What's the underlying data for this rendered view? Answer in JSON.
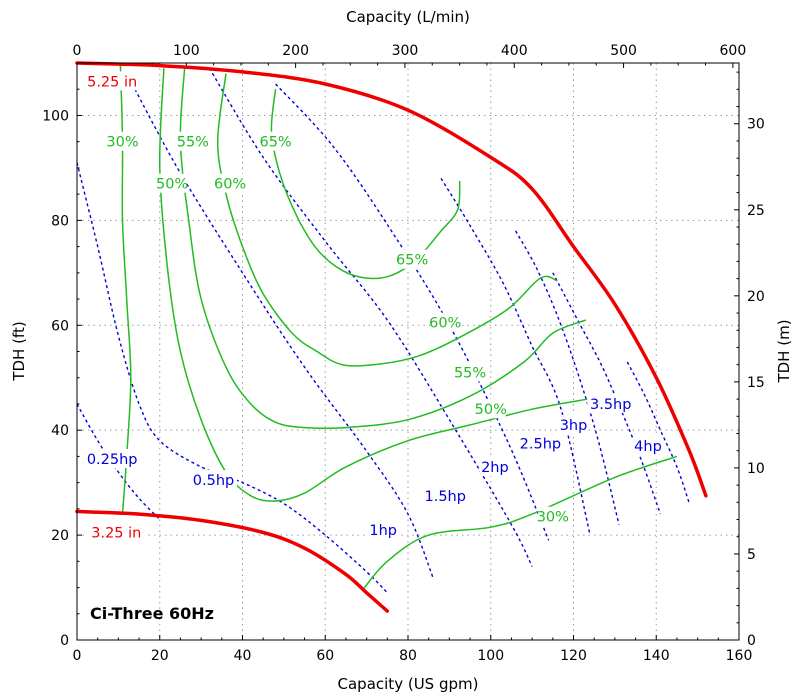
{
  "chart_data": {
    "type": "line",
    "chart_label": "Ci-Three 60Hz",
    "xlabel_bottom": "Capacity (US gpm)",
    "xlabel_top": "Capacity (L/min)",
    "ylabel_left": "TDH (ft)",
    "ylabel_right": "TDH (m)",
    "xlim": [
      0,
      160
    ],
    "ylim": [
      0,
      110
    ],
    "xlim_top": [
      0,
      605.6
    ],
    "ylim_right": [
      0,
      33.53
    ],
    "x_ticks": [
      "0",
      "20",
      "40",
      "60",
      "80",
      "100",
      "120",
      "140",
      "160"
    ],
    "y_ticks": [
      "0",
      "20",
      "40",
      "60",
      "80",
      "100"
    ],
    "x_ticks_top": [
      "0",
      "100",
      "200",
      "300",
      "400",
      "500",
      "600"
    ],
    "y_ticks_right": [
      "0",
      "5",
      "10",
      "15",
      "20",
      "25",
      "30"
    ],
    "grid": true,
    "colors": {
      "impeller": "#ee0000",
      "efficiency": "#22bb22",
      "power": "#0000dd"
    },
    "impeller_curves": [
      {
        "label": "5.25 in",
        "points": [
          [
            0,
            110
          ],
          [
            20,
            109.5
          ],
          [
            40,
            108.3
          ],
          [
            60,
            106
          ],
          [
            80,
            101
          ],
          [
            100,
            92
          ],
          [
            110,
            86
          ],
          [
            120,
            75
          ],
          [
            130,
            64
          ],
          [
            140,
            50
          ],
          [
            148,
            36
          ],
          [
            152,
            27.5
          ]
        ]
      },
      {
        "label": "3.25 in",
        "points": [
          [
            0,
            24.5
          ],
          [
            15,
            24
          ],
          [
            30,
            22.8
          ],
          [
            45,
            20.5
          ],
          [
            55,
            17.5
          ],
          [
            65,
            12.5
          ],
          [
            70,
            9
          ],
          [
            75,
            5.5
          ]
        ]
      }
    ],
    "efficiency_curves": [
      {
        "label": "30%",
        "points": [
          [
            11,
            24
          ],
          [
            12,
            35
          ],
          [
            13,
            50
          ],
          [
            12,
            65
          ],
          [
            11,
            80
          ],
          [
            11,
            95
          ],
          [
            10.5,
            109.5
          ]
        ]
      },
      {
        "label": "30%",
        "points": [
          [
            69,
            9.5
          ],
          [
            75,
            15
          ],
          [
            85,
            20
          ],
          [
            100,
            21.5
          ],
          [
            110,
            24
          ],
          [
            130,
            31
          ],
          [
            145,
            35
          ]
        ]
      },
      {
        "label": "50%",
        "points": [
          [
            21,
            109
          ],
          [
            20,
            90
          ],
          [
            22,
            70
          ],
          [
            25,
            55
          ],
          [
            30,
            42
          ],
          [
            36,
            32
          ],
          [
            42,
            27.5
          ],
          [
            48,
            26.5
          ],
          [
            55,
            28
          ],
          [
            65,
            33
          ],
          [
            80,
            38
          ],
          [
            95,
            41
          ],
          [
            110,
            44
          ],
          [
            124,
            46
          ]
        ]
      },
      {
        "label": "55%",
        "points": [
          [
            26,
            109
          ],
          [
            25,
            95
          ],
          [
            27,
            80
          ],
          [
            30,
            65
          ],
          [
            36,
            52
          ],
          [
            42,
            45
          ],
          [
            48,
            41.5
          ],
          [
            55,
            40.5
          ],
          [
            65,
            40.5
          ],
          [
            80,
            42
          ],
          [
            95,
            46.5
          ],
          [
            108,
            53
          ],
          [
            115,
            58.5
          ],
          [
            123,
            61
          ]
        ]
      },
      {
        "label": "60%",
        "points": [
          [
            36,
            108
          ],
          [
            34,
            95
          ],
          [
            36,
            85
          ],
          [
            40,
            75
          ],
          [
            45,
            66
          ],
          [
            52,
            58.5
          ],
          [
            58,
            55
          ],
          [
            64,
            52.5
          ],
          [
            72,
            52.5
          ],
          [
            82,
            54
          ],
          [
            92,
            57.5
          ],
          [
            104,
            63
          ],
          [
            112,
            69
          ],
          [
            116,
            68.5
          ]
        ]
      },
      {
        "label": "65%",
        "points": [
          [
            48,
            105
          ],
          [
            47,
            97
          ],
          [
            49,
            89
          ],
          [
            53,
            81
          ],
          [
            58,
            74.5
          ],
          [
            64,
            70.5
          ],
          [
            70,
            69
          ],
          [
            76,
            69.5
          ],
          [
            82,
            72.5
          ],
          [
            88,
            78
          ],
          [
            92,
            82
          ],
          [
            92.5,
            87.5
          ]
        ]
      }
    ],
    "efficiency_labels": [
      {
        "text": "30%",
        "x": 11,
        "y": 95
      },
      {
        "text": "50%",
        "x": 23,
        "y": 87
      },
      {
        "text": "55%",
        "x": 28,
        "y": 95
      },
      {
        "text": "60%",
        "x": 37,
        "y": 87
      },
      {
        "text": "65%",
        "x": 48,
        "y": 95
      },
      {
        "text": "65%",
        "x": 81,
        "y": 72.5
      },
      {
        "text": "60%",
        "x": 89,
        "y": 60.5
      },
      {
        "text": "55%",
        "x": 95,
        "y": 51
      },
      {
        "text": "50%",
        "x": 100,
        "y": 44
      },
      {
        "text": "30%",
        "x": 115,
        "y": 23.5
      }
    ],
    "power_curves": [
      {
        "label": "0.25hp",
        "points": [
          [
            0,
            45
          ],
          [
            5,
            38
          ],
          [
            10,
            32
          ],
          [
            15,
            27
          ],
          [
            20,
            23
          ]
        ]
      },
      {
        "label": "0.5hp",
        "points": [
          [
            0,
            91
          ],
          [
            5,
            75
          ],
          [
            10,
            58
          ],
          [
            15,
            45
          ],
          [
            20,
            38
          ],
          [
            30,
            33
          ],
          [
            40,
            30
          ],
          [
            50,
            26
          ],
          [
            60,
            20
          ],
          [
            70,
            13
          ],
          [
            75,
            9
          ]
        ]
      },
      {
        "label": "1hp",
        "points": [
          [
            14,
            105
          ],
          [
            25,
            89
          ],
          [
            40,
            70
          ],
          [
            55,
            52
          ],
          [
            70,
            36
          ],
          [
            80,
            24
          ],
          [
            86,
            12
          ]
        ]
      },
      {
        "label": "1.5hp",
        "points": [
          [
            32,
            109
          ],
          [
            45,
            92
          ],
          [
            60,
            76
          ],
          [
            75,
            61
          ],
          [
            90,
            42
          ],
          [
            105,
            22
          ],
          [
            110,
            14
          ]
        ]
      },
      {
        "label": "2hp",
        "points": [
          [
            48,
            106
          ],
          [
            62,
            94
          ],
          [
            76,
            78
          ],
          [
            90,
            60
          ],
          [
            104,
            38
          ],
          [
            114,
            19
          ]
        ]
      },
      {
        "label": "2.5hp",
        "points": [
          [
            88,
            88
          ],
          [
            95,
            79
          ],
          [
            103,
            68
          ],
          [
            110,
            56
          ],
          [
            117,
            44
          ],
          [
            124,
            20
          ]
        ]
      },
      {
        "label": "3hp",
        "points": [
          [
            106,
            78
          ],
          [
            111,
            71
          ],
          [
            116,
            62
          ],
          [
            121,
            51
          ],
          [
            126,
            38
          ],
          [
            131,
            22
          ]
        ]
      },
      {
        "label": "3.5hp",
        "points": [
          [
            115,
            70
          ],
          [
            121,
            61
          ],
          [
            127,
            52
          ],
          [
            133,
            41
          ],
          [
            137,
            33
          ],
          [
            141,
            24
          ]
        ]
      },
      {
        "label": "4hp",
        "points": [
          [
            133,
            53
          ],
          [
            137,
            47
          ],
          [
            141,
            40
          ],
          [
            145,
            33
          ],
          [
            148,
            26
          ]
        ]
      }
    ],
    "power_labels": [
      {
        "text": "0.25hp",
        "x": 8.5,
        "y": 34.5
      },
      {
        "text": "0.5hp",
        "x": 33,
        "y": 30.5
      },
      {
        "text": "1hp",
        "x": 74,
        "y": 21
      },
      {
        "text": "1.5hp",
        "x": 89,
        "y": 27.5
      },
      {
        "text": "2hp",
        "x": 101,
        "y": 33
      },
      {
        "text": "2.5hp",
        "x": 112,
        "y": 37.5
      },
      {
        "text": "3hp",
        "x": 120,
        "y": 41
      },
      {
        "text": "3.5hp",
        "x": 129,
        "y": 45
      },
      {
        "text": "4hp",
        "x": 138,
        "y": 37
      }
    ],
    "impeller_labels": [
      {
        "text": "5.25 in",
        "x": 8.5,
        "y": 106.5
      },
      {
        "text": "3.25 in",
        "x": 9.5,
        "y": 20.5
      }
    ]
  }
}
